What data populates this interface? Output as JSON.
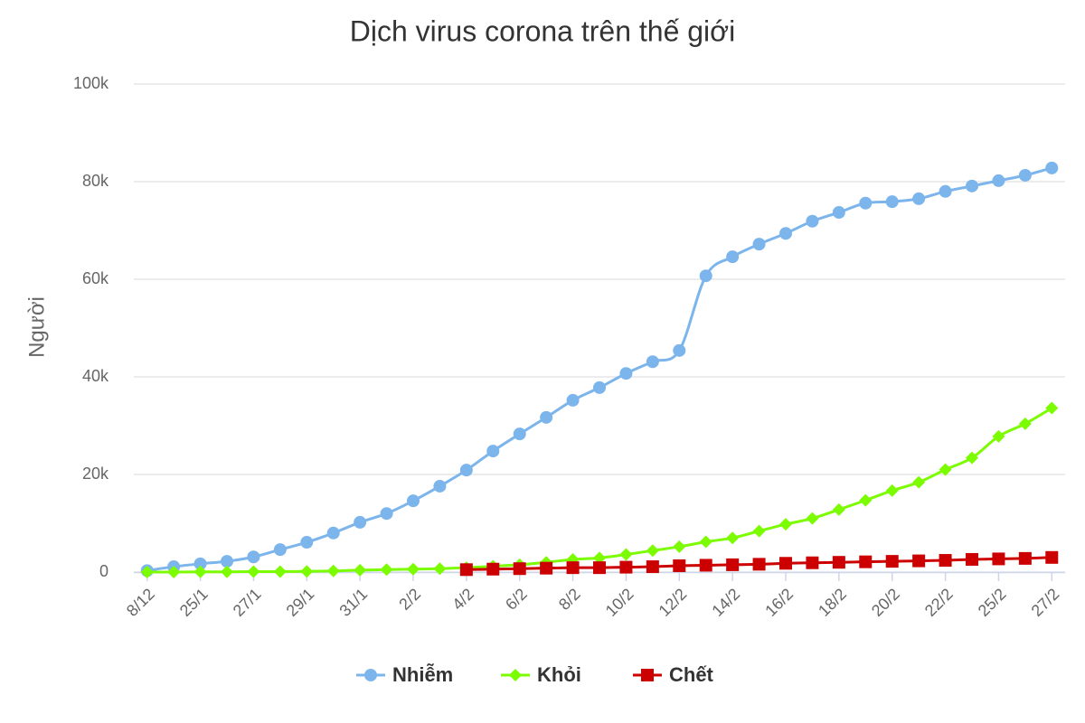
{
  "chart_data": {
    "type": "line",
    "title": "Dịch virus corona trên thế giới",
    "y_label": "Người",
    "categories": [
      "8/12",
      null,
      "25/1",
      null,
      "27/1",
      null,
      "29/1",
      null,
      "31/1",
      null,
      "2/2",
      null,
      "4/2",
      null,
      "6/2",
      null,
      "8/2",
      null,
      "10/2",
      null,
      "12/2",
      null,
      "14/2",
      null,
      "16/2",
      null,
      "18/2",
      null,
      "20/2",
      null,
      "22/2",
      null,
      "25/2",
      null,
      "27/2"
    ],
    "ylim": [
      0,
      100000
    ],
    "yticks": [
      0,
      {
        "value": 20000,
        "label": "20k"
      },
      {
        "value": 40000,
        "label": "40k"
      },
      {
        "value": 60000,
        "label": "60k"
      },
      {
        "value": 80000,
        "label": "80k"
      },
      {
        "value": 100000,
        "label": "100k"
      }
    ],
    "grid": true,
    "legend": "bottom",
    "series": [
      {
        "name": "Nhiễm",
        "color": "#7cb5ec",
        "marker": "circle",
        "values": [
          300,
          1100,
          1700,
          2200,
          3100,
          4600,
          6100,
          8000,
          10200,
          12000,
          14600,
          17600,
          20900,
          24800,
          28300,
          31700,
          35200,
          37800,
          40700,
          43100,
          45400,
          60700,
          64600,
          67200,
          69400,
          71900,
          73700,
          75600,
          75900,
          76500,
          78000,
          79100,
          80200,
          81300,
          82800
        ]
      },
      {
        "name": "Khỏi",
        "color": "#7cfc00",
        "marker": "diamond",
        "values": [
          0,
          0,
          40,
          50,
          100,
          100,
          140,
          240,
          400,
          500,
          600,
          700,
          900,
          1200,
          1500,
          2000,
          2600,
          2900,
          3600,
          4400,
          5200,
          6200,
          7000,
          8400,
          9800,
          11000,
          12800,
          14700,
          16700,
          18400,
          21000,
          23400,
          27800,
          30400,
          33600
        ]
      },
      {
        "name": "Chết",
        "color": "#cc0000",
        "marker": "square",
        "values": [
          null,
          null,
          null,
          null,
          null,
          null,
          null,
          null,
          null,
          null,
          null,
          null,
          500,
          600,
          700,
          800,
          900,
          900,
          1000,
          1100,
          1300,
          1400,
          1500,
          1600,
          1800,
          1900,
          2000,
          2100,
          2200,
          2300,
          2400,
          2600,
          2700,
          2800,
          3000
        ]
      }
    ]
  }
}
